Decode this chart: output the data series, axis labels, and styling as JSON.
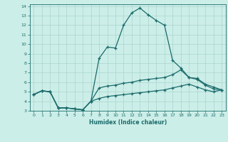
{
  "xlabel": "Humidex (Indice chaleur)",
  "ylabel": "",
  "xlim": [
    -0.5,
    23.5
  ],
  "ylim": [
    3,
    14.2
  ],
  "xticks": [
    0,
    1,
    2,
    3,
    4,
    5,
    6,
    7,
    8,
    9,
    10,
    11,
    12,
    13,
    14,
    15,
    16,
    17,
    18,
    19,
    20,
    21,
    22,
    23
  ],
  "yticks": [
    3,
    4,
    5,
    6,
    7,
    8,
    9,
    10,
    11,
    12,
    13,
    14
  ],
  "bg_color": "#cceee8",
  "line_color": "#1a6b6b",
  "grid_color": "#aad4ce",
  "curve1_x": [
    0,
    1,
    2,
    3,
    4,
    5,
    6,
    7,
    8,
    9,
    10,
    11,
    12,
    13,
    14,
    15,
    16,
    17,
    18,
    19,
    20,
    21,
    22,
    23
  ],
  "curve1_y": [
    4.7,
    5.1,
    5.0,
    3.3,
    3.3,
    3.2,
    3.1,
    4.0,
    8.5,
    9.7,
    9.6,
    12.0,
    13.3,
    13.8,
    13.1,
    12.5,
    12.0,
    8.3,
    7.5,
    6.5,
    6.3,
    5.7,
    5.3,
    5.2
  ],
  "curve2_x": [
    0,
    1,
    2,
    3,
    4,
    5,
    6,
    7,
    8,
    9,
    10,
    11,
    12,
    13,
    14,
    15,
    16,
    17,
    18,
    19,
    20,
    21,
    22,
    23
  ],
  "curve2_y": [
    4.7,
    5.1,
    5.0,
    3.3,
    3.3,
    3.2,
    3.1,
    4.0,
    5.4,
    5.6,
    5.7,
    5.9,
    6.0,
    6.2,
    6.3,
    6.4,
    6.5,
    6.8,
    7.3,
    6.5,
    6.4,
    5.8,
    5.5,
    5.2
  ],
  "curve3_x": [
    0,
    1,
    2,
    3,
    4,
    5,
    6,
    7,
    8,
    9,
    10,
    11,
    12,
    13,
    14,
    15,
    16,
    17,
    18,
    19,
    20,
    21,
    22,
    23
  ],
  "curve3_y": [
    4.7,
    5.1,
    5.0,
    3.3,
    3.3,
    3.2,
    3.1,
    4.0,
    4.3,
    4.5,
    4.6,
    4.7,
    4.8,
    4.9,
    5.0,
    5.1,
    5.2,
    5.4,
    5.6,
    5.8,
    5.5,
    5.2,
    5.0,
    5.2
  ]
}
